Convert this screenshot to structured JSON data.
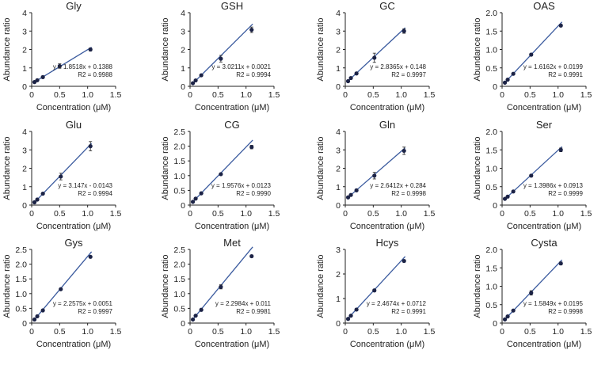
{
  "chart_data": [
    {
      "type": "scatter",
      "title": "Gly",
      "xlabel": "Concentration (μM)",
      "ylabel": "Abundance ratio",
      "xlim": [
        0,
        1.5
      ],
      "ylim": [
        0,
        4
      ],
      "xticks": [
        "0",
        "0.5",
        "1.0",
        "1.5"
      ],
      "yticks": [
        "0",
        "1",
        "2",
        "3",
        "4"
      ],
      "x": [
        0.05,
        0.1,
        0.2,
        0.5,
        1.05
      ],
      "y": [
        0.23,
        0.33,
        0.5,
        1.1,
        2.0
      ],
      "err": [
        0.02,
        0.02,
        0.03,
        0.12,
        0.08
      ],
      "equation": "y = 1.8518x + 0.1388",
      "r2": "R2 = 0.9988",
      "fit": {
        "slope": 1.8518,
        "intercept": 0.1388
      }
    },
    {
      "type": "scatter",
      "title": "GSH",
      "xlabel": "Concentration (μM)",
      "ylabel": "Abundance ratio",
      "xlim": [
        0,
        1.5
      ],
      "ylim": [
        0,
        4
      ],
      "xticks": [
        "0",
        "0.5",
        "1.0",
        "1.5"
      ],
      "yticks": [
        "0",
        "1",
        "2",
        "3",
        "4"
      ],
      "x": [
        0.05,
        0.1,
        0.2,
        0.55,
        1.1
      ],
      "y": [
        0.17,
        0.32,
        0.6,
        1.5,
        3.07
      ],
      "err": [
        0.02,
        0.03,
        0.05,
        0.18,
        0.15
      ],
      "equation": "y = 3.0211x + 0.0021",
      "r2": "R2 = 0.9994",
      "fit": {
        "slope": 3.0211,
        "intercept": 0.0021
      }
    },
    {
      "type": "scatter",
      "title": "GC",
      "xlabel": "Concentration (μM)",
      "ylabel": "Abundance ratio",
      "xlim": [
        0,
        1.5
      ],
      "ylim": [
        0,
        4
      ],
      "xticks": [
        "0",
        "0.5",
        "1.0",
        "1.5"
      ],
      "yticks": [
        "0",
        "1",
        "2",
        "3",
        "4"
      ],
      "x": [
        0.05,
        0.1,
        0.2,
        0.52,
        1.05
      ],
      "y": [
        0.28,
        0.45,
        0.7,
        1.55,
        3.0
      ],
      "err": [
        0.02,
        0.03,
        0.05,
        0.25,
        0.12
      ],
      "equation": "y = 2.8365x + 0.148",
      "r2": "R2 = 0.9997",
      "fit": {
        "slope": 2.8365,
        "intercept": 0.148
      }
    },
    {
      "type": "scatter",
      "title": "OAS",
      "xlabel": "Concentration (μM)",
      "ylabel": "Abundance ratio",
      "xlim": [
        0,
        1.5
      ],
      "ylim": [
        0,
        2.0
      ],
      "xticks": [
        "0",
        "0.5",
        "1.0",
        "1.5"
      ],
      "yticks": [
        "0",
        "0.5",
        "1.0",
        "1.5",
        "2.0"
      ],
      "x": [
        0.05,
        0.1,
        0.2,
        0.52,
        1.05
      ],
      "y": [
        0.1,
        0.18,
        0.34,
        0.86,
        1.65
      ],
      "err": [
        0.01,
        0.01,
        0.02,
        0.03,
        0.03
      ],
      "equation": "y = 1.6162x + 0.0199",
      "r2": "R2 = 0.9991",
      "fit": {
        "slope": 1.6162,
        "intercept": 0.0199
      }
    },
    {
      "type": "scatter",
      "title": "Glu",
      "xlabel": "Concentration (μM)",
      "ylabel": "Abundance ratio",
      "xlim": [
        0,
        1.5
      ],
      "ylim": [
        0,
        4
      ],
      "xticks": [
        "0",
        "0.5",
        "1.0",
        "1.5"
      ],
      "yticks": [
        "0",
        "1",
        "2",
        "3",
        "4"
      ],
      "x": [
        0.05,
        0.1,
        0.2,
        0.52,
        1.05
      ],
      "y": [
        0.15,
        0.3,
        0.62,
        1.55,
        3.2
      ],
      "err": [
        0.02,
        0.03,
        0.05,
        0.18,
        0.25
      ],
      "equation": "y = 3.147x - 0.0143",
      "r2": "R2 = 0.9994",
      "fit": {
        "slope": 3.147,
        "intercept": -0.0143
      }
    },
    {
      "type": "scatter",
      "title": "CG",
      "xlabel": "Concentration (μM)",
      "ylabel": "Abundance ratio",
      "xlim": [
        0,
        1.5
      ],
      "ylim": [
        0,
        2.5
      ],
      "xticks": [
        "0",
        "0.5",
        "1.0",
        "1.5"
      ],
      "yticks": [
        "0",
        "0.5",
        "1.0",
        "1.5",
        "2.0",
        "2.5"
      ],
      "x": [
        0.05,
        0.1,
        0.2,
        0.55,
        1.1
      ],
      "y": [
        0.11,
        0.22,
        0.4,
        1.05,
        1.97
      ],
      "err": [
        0.01,
        0.01,
        0.02,
        0.03,
        0.06
      ],
      "equation": "y = 1.9576x + 0.0123",
      "r2": "R2 = 0.9990",
      "fit": {
        "slope": 1.9576,
        "intercept": 0.0123
      }
    },
    {
      "type": "scatter",
      "title": "Gln",
      "xlabel": "Concentration (μM)",
      "ylabel": "Abundance ratio",
      "xlim": [
        0,
        1.5
      ],
      "ylim": [
        0,
        4
      ],
      "xticks": [
        "0",
        "0.5",
        "1.0",
        "1.5"
      ],
      "yticks": [
        "0",
        "1",
        "2",
        "3",
        "4"
      ],
      "x": [
        0.05,
        0.1,
        0.2,
        0.52,
        1.05
      ],
      "y": [
        0.42,
        0.55,
        0.8,
        1.6,
        2.95
      ],
      "err": [
        0.02,
        0.03,
        0.05,
        0.18,
        0.2
      ],
      "equation": "y = 2.6412x + 0.284",
      "r2": "R2 = 0.9998",
      "fit": {
        "slope": 2.6412,
        "intercept": 0.284
      }
    },
    {
      "type": "scatter",
      "title": "Ser",
      "xlabel": "Concentration (μM)",
      "ylabel": "Abundance ratio",
      "xlim": [
        0,
        1.5
      ],
      "ylim": [
        0,
        2.0
      ],
      "xticks": [
        "0",
        "0.5",
        "1.0",
        "1.5"
      ],
      "yticks": [
        "0",
        "0.5",
        "1.0",
        "1.5",
        "2.0"
      ],
      "x": [
        0.05,
        0.1,
        0.2,
        0.52,
        1.05
      ],
      "y": [
        0.17,
        0.23,
        0.37,
        0.8,
        1.5
      ],
      "err": [
        0.01,
        0.01,
        0.02,
        0.03,
        0.05
      ],
      "equation": "y = 1.3986x + 0.0913",
      "r2": "R2 = 0.9999",
      "fit": {
        "slope": 1.3986,
        "intercept": 0.0913
      }
    },
    {
      "type": "scatter",
      "title": "Gys",
      "xlabel": "Concentration (μM)",
      "ylabel": "Abundance ratio",
      "xlim": [
        0,
        1.5
      ],
      "ylim": [
        0,
        2.5
      ],
      "xticks": [
        "0",
        "0.5",
        "1.0",
        "1.5"
      ],
      "yticks": [
        "0",
        "0.5",
        "1.0",
        "1.5",
        "2.0",
        "2.5"
      ],
      "x": [
        0.05,
        0.1,
        0.2,
        0.52,
        1.05
      ],
      "y": [
        0.12,
        0.23,
        0.43,
        1.15,
        2.25
      ],
      "err": [
        0.01,
        0.01,
        0.02,
        0.03,
        0.03
      ],
      "equation": "y = 2.2575x + 0.0051",
      "r2": "R2 = 0.9997",
      "fit": {
        "slope": 2.2575,
        "intercept": 0.0051
      }
    },
    {
      "type": "scatter",
      "title": "Met",
      "xlabel": "Concentration (μM)",
      "ylabel": "Abundance ratio",
      "xlim": [
        0,
        1.5
      ],
      "ylim": [
        0,
        2.5
      ],
      "xticks": [
        "0",
        "0.5",
        "1.0",
        "1.5"
      ],
      "yticks": [
        "0",
        "0.5",
        "1.0",
        "1.5",
        "2.0",
        "2.5"
      ],
      "x": [
        0.05,
        0.1,
        0.2,
        0.55,
        1.1
      ],
      "y": [
        0.12,
        0.25,
        0.45,
        1.23,
        2.27
      ],
      "err": [
        0.01,
        0.02,
        0.03,
        0.07,
        0.04
      ],
      "equation": "y = 2.2984x + 0.011",
      "r2": "R2 = 0.9981",
      "fit": {
        "slope": 2.2984,
        "intercept": 0.011
      }
    },
    {
      "type": "scatter",
      "title": "Hcys",
      "xlabel": "Concentration (μM)",
      "ylabel": "Abundance ratio",
      "xlim": [
        0,
        1.5
      ],
      "ylim": [
        0,
        3
      ],
      "xticks": [
        "0",
        "0.5",
        "1.0",
        "1.5"
      ],
      "yticks": [
        "0",
        "1",
        "2",
        "3"
      ],
      "x": [
        0.05,
        0.1,
        0.2,
        0.52,
        1.05
      ],
      "y": [
        0.17,
        0.3,
        0.55,
        1.33,
        2.53
      ],
      "err": [
        0.01,
        0.02,
        0.03,
        0.05,
        0.05
      ],
      "equation": "y = 2.4674x + 0.0712",
      "r2": "R2 = 0.9991",
      "fit": {
        "slope": 2.4674,
        "intercept": 0.0712
      }
    },
    {
      "type": "scatter",
      "title": "Cysta",
      "xlabel": "Concentration (μM)",
      "ylabel": "Abundance ratio",
      "xlim": [
        0,
        1.5
      ],
      "ylim": [
        0,
        2.0
      ],
      "xticks": [
        "0",
        "0.5",
        "1.0",
        "1.5"
      ],
      "yticks": [
        "0",
        "0.5",
        "1.0",
        "1.5",
        "2.0"
      ],
      "x": [
        0.05,
        0.1,
        0.2,
        0.52,
        1.05
      ],
      "y": [
        0.1,
        0.18,
        0.34,
        0.82,
        1.62
      ],
      "err": [
        0.01,
        0.01,
        0.02,
        0.06,
        0.04
      ],
      "equation": "y = 1.5849x + 0.0195",
      "r2": "R2 = 0.9998",
      "fit": {
        "slope": 1.5849,
        "intercept": 0.0195
      }
    }
  ]
}
